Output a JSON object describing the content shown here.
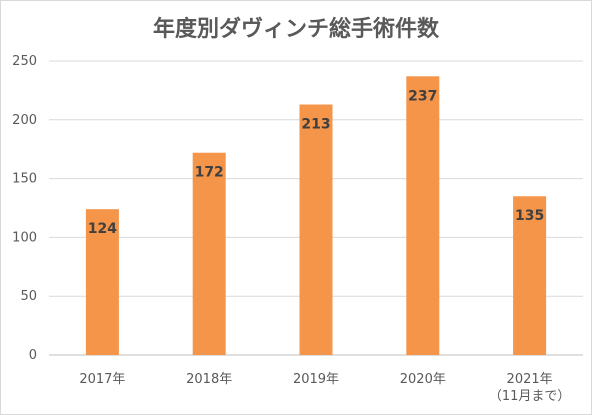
{
  "chart_data": {
    "type": "bar",
    "title": "年度別ダヴィンチ総手術件数",
    "categories": [
      "2017年",
      "2018年",
      "2019年",
      "2020年",
      "2021年"
    ],
    "category_sublabels": [
      "",
      "",
      "",
      "",
      "（11月まで）"
    ],
    "values": [
      124,
      172,
      213,
      237,
      135
    ],
    "data_labels": [
      "124",
      "172",
      "213",
      "237",
      "135"
    ],
    "yticks": [
      "0",
      "50",
      "100",
      "150",
      "200",
      "250"
    ],
    "ylim": [
      0,
      250
    ],
    "grid": true,
    "bar_color": "#f5954a",
    "gridline_color": "#d9d9d9",
    "xlabel": "",
    "ylabel": ""
  }
}
